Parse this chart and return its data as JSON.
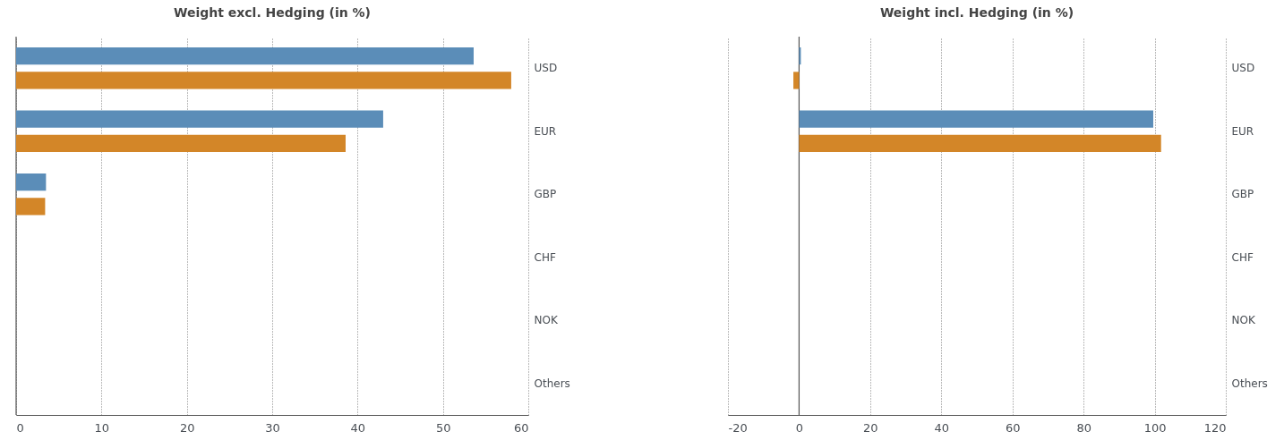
{
  "chart_data": [
    {
      "type": "bar",
      "orientation": "horizontal",
      "title": "Weight excl. Hedging (in %)",
      "categories": [
        "USD",
        "EUR",
        "GBP",
        "CHF",
        "NOK",
        "Others"
      ],
      "series": [
        {
          "color": "#5b8db8",
          "values": [
            53.6,
            43.0,
            3.5,
            0,
            0,
            0
          ]
        },
        {
          "color": "#d38628",
          "values": [
            58.0,
            38.6,
            3.4,
            0,
            0,
            0
          ]
        }
      ],
      "xlim": [
        0,
        60
      ],
      "xticks": [
        0,
        10,
        20,
        30,
        40,
        50,
        60
      ],
      "grid": "x",
      "legend": false,
      "ref_lines": [
        {
          "axis": "x",
          "value": 0
        }
      ]
    },
    {
      "type": "bar",
      "orientation": "horizontal",
      "title": "Weight incl. Hedging (in %)",
      "categories": [
        "USD",
        "EUR",
        "GBP",
        "CHF",
        "NOK",
        "Others"
      ],
      "series": [
        {
          "color": "#5b8db8",
          "values": [
            0.5,
            99.6,
            0,
            0,
            0,
            0
          ]
        },
        {
          "color": "#d38628",
          "values": [
            -1.6,
            101.8,
            0,
            0,
            0,
            0
          ]
        }
      ],
      "xlim": [
        -20,
        120
      ],
      "xticks": [
        -20,
        0,
        20,
        40,
        60,
        80,
        100,
        120
      ],
      "grid": "x",
      "legend": false,
      "ref_lines": [
        {
          "axis": "x",
          "value": 0
        }
      ]
    }
  ]
}
